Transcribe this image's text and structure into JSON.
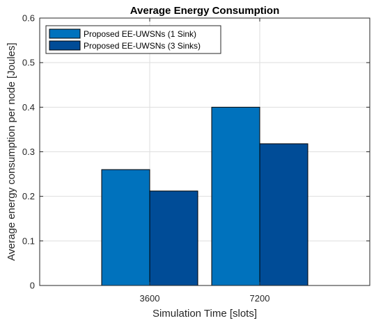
{
  "chart_data": {
    "type": "bar",
    "title": "Average Energy Consumption",
    "xlabel": "Simulation Time [slots]",
    "ylabel": "Average energy consumption per node [Joules]",
    "categories": [
      "3600",
      "7200"
    ],
    "series": [
      {
        "name": "Proposed EE-UWSNs (1 Sink)",
        "color": "#0072bd",
        "values": [
          0.26,
          0.4
        ]
      },
      {
        "name": "Proposed EE-UWSNs (3 Sinks)",
        "color": "#004c97",
        "values": [
          0.212,
          0.318
        ]
      }
    ],
    "ylim": [
      0,
      0.6
    ],
    "yticks": [
      "0",
      "0.1",
      "0.2",
      "0.3",
      "0.4",
      "0.5",
      "0.6"
    ],
    "grid": true,
    "legend_position": "top-left"
  }
}
